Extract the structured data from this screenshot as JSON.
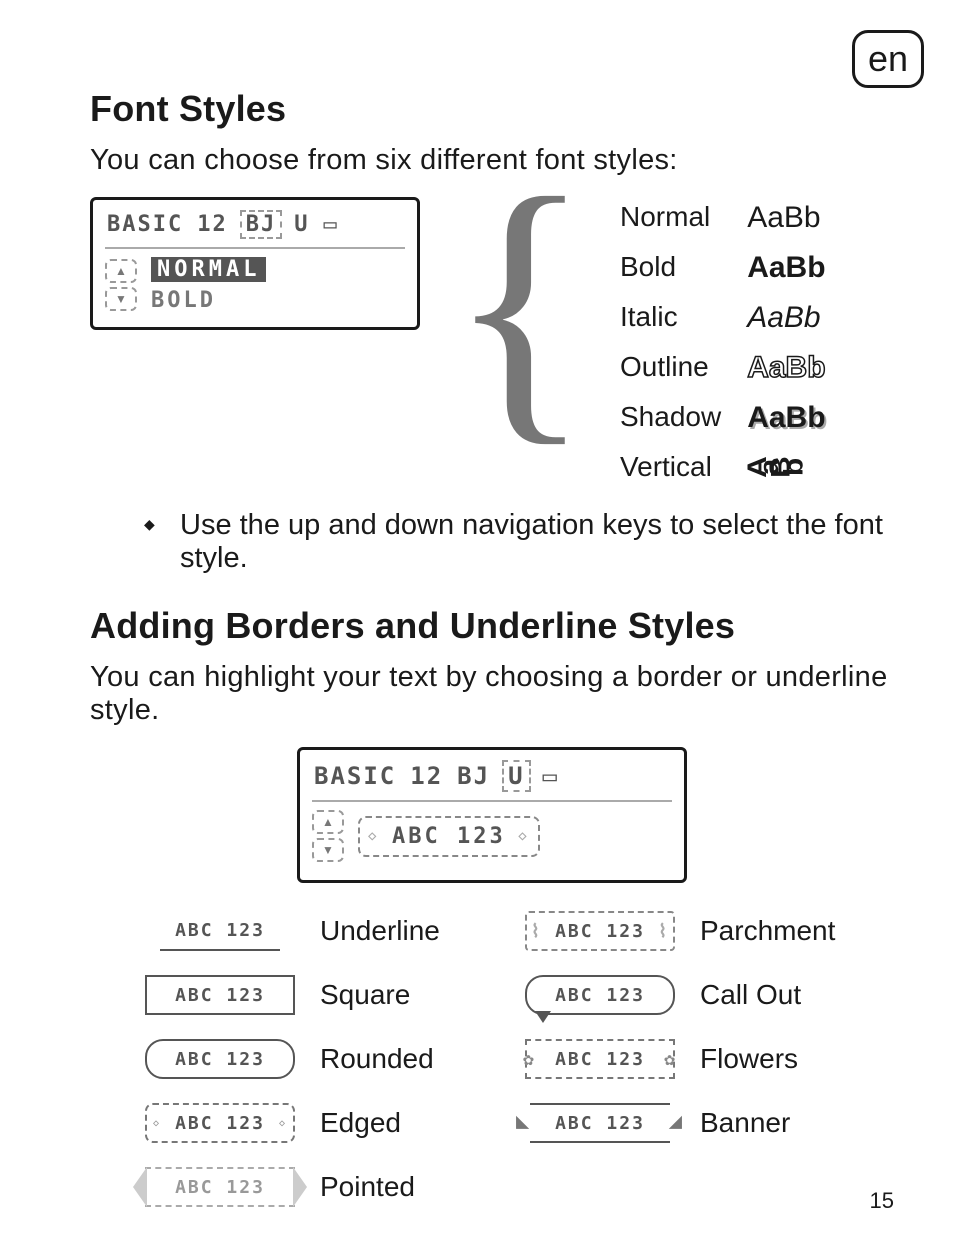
{
  "lang_tag": "en",
  "heading1": "Font Styles",
  "intro1": "You can choose from six different font styles:",
  "lcd1": {
    "top_font": "BASIC",
    "top_size": "12",
    "top_flags": "BJ",
    "top_u": "U",
    "top_box": "▭",
    "line1": "NORMAL",
    "line2": "BOLD"
  },
  "styles": {
    "normal": {
      "label": "Normal",
      "sample": "AaBb"
    },
    "bold": {
      "label": "Bold",
      "sample": "AaBb"
    },
    "italic": {
      "label": "Italic",
      "sample": "AaBb"
    },
    "outline": {
      "label": "Outline",
      "sample": "AaBb"
    },
    "shadow": {
      "label": "Shadow",
      "sample": "AaBb"
    },
    "vertical": {
      "label": "Vertical",
      "sample": "AaBb"
    }
  },
  "bullet1": "Use the up and down navigation keys to select the font style.",
  "heading2": "Adding Borders and Underline Styles",
  "intro2": "You can highlight your text by choosing a border or underline style.",
  "lcd2": {
    "top_font": "BASIC",
    "top_size": "12",
    "top_flags": "BJ",
    "top_u": "U",
    "top_box": "▭",
    "preview": "ABC 123"
  },
  "sample_text": "ABC 123",
  "borders": {
    "underline": "Underline",
    "square": "Square",
    "rounded": "Rounded",
    "edged": "Edged",
    "pointed": "Pointed",
    "parchment": "Parchment",
    "callout": "Call Out",
    "flowers": "Flowers",
    "banner": "Banner"
  },
  "page_number": "15"
}
